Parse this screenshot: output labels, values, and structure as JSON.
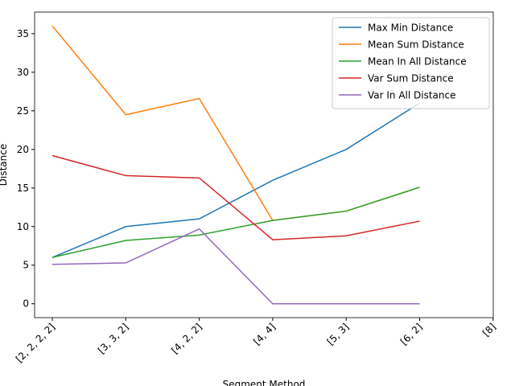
{
  "chart_data": {
    "type": "line",
    "xlabel": "Segment Method",
    "ylabel": "Distance",
    "categories": [
      "[2, 2, 2, 2]",
      "[3, 3, 2]",
      "[4, 2, 2]",
      "[4, 4]",
      "[5, 3]",
      "[6, 2]",
      "[8]"
    ],
    "series": [
      {
        "name": "Max Min Distance",
        "color": "#1f77b4",
        "values": [
          6,
          10,
          11,
          16,
          20,
          26,
          null
        ]
      },
      {
        "name": "Mean Sum Distance",
        "color": "#ff7f0e",
        "values": [
          36,
          24.5,
          26.6,
          10.8,
          12,
          15.1,
          null
        ]
      },
      {
        "name": "Mean In All Distance",
        "color": "#2ca02c",
        "values": [
          6,
          8.2,
          8.9,
          10.8,
          12,
          15.1,
          null
        ]
      },
      {
        "name": "Var Sum Distance",
        "color": "#d62728",
        "values": [
          19.2,
          16.6,
          16.3,
          8.3,
          8.8,
          10.7,
          null
        ]
      },
      {
        "name": "Var In All Distance",
        "color": "#9467bd",
        "values": [
          5.1,
          5.3,
          9.7,
          0,
          0,
          0,
          null
        ]
      }
    ],
    "ylim": [
      -1.8,
      37.8
    ],
    "yticks": [
      0,
      5,
      10,
      15,
      20,
      25,
      30,
      35
    ],
    "legend": "upper right"
  }
}
